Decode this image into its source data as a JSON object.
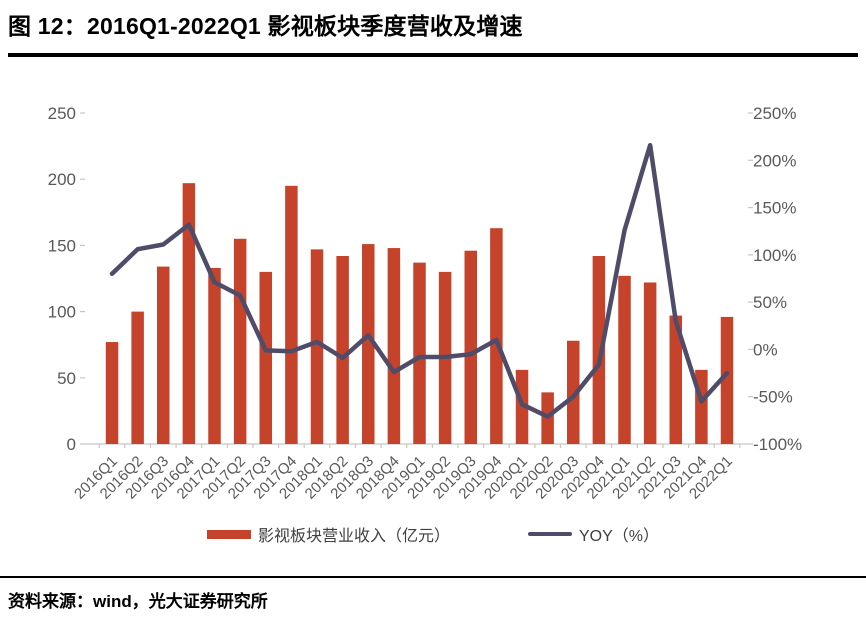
{
  "figure": {
    "title": "图 12：2016Q1-2022Q1 影视板块季度营收及增速",
    "source": "资料来源：wind，光大证券研究所"
  },
  "legend": {
    "revenue_label": "影视板块营业收入（亿元）",
    "yoy_label": "YOY（%）"
  },
  "colors": {
    "bar": "#C5432B",
    "line": "#4F4C69",
    "axis_text": "#595959",
    "tick": "#C6C6C6",
    "rule": "#000000"
  },
  "chart_data": {
    "type": "bar+line",
    "title": "图 12：2016Q1-2022Q1 影视板块季度营收及增速",
    "categories": [
      "2016Q1",
      "2016Q2",
      "2016Q3",
      "2016Q4",
      "2017Q1",
      "2017Q2",
      "2017Q3",
      "2017Q4",
      "2018Q1",
      "2018Q2",
      "2018Q3",
      "2018Q4",
      "2019Q1",
      "2019Q2",
      "2019Q3",
      "2019Q4",
      "2020Q1",
      "2020Q2",
      "2020Q3",
      "2020Q4",
      "2021Q1",
      "2021Q2",
      "2021Q3",
      "2021Q4",
      "2022Q1"
    ],
    "series": [
      {
        "name": "影视板块营业收入（亿元）",
        "kind": "bar",
        "axis": "left",
        "values": [
          77,
          100,
          134,
          197,
          133,
          155,
          130,
          195,
          147,
          142,
          151,
          148,
          137,
          130,
          146,
          163,
          56,
          39,
          78,
          142,
          127,
          122,
          97,
          56,
          96
        ]
      },
      {
        "name": "YOY（%）",
        "kind": "line",
        "axis": "right",
        "values": [
          80,
          106,
          111,
          132,
          71,
          57,
          -1,
          -2,
          8,
          -9,
          15,
          -24,
          -8,
          -8,
          -5,
          10,
          -58,
          -71,
          -50,
          -16,
          126,
          216,
          30,
          -55,
          -25
        ]
      }
    ],
    "left_axis": {
      "min": 0,
      "max": 250,
      "step": 50,
      "tick_labels": [
        "0",
        "50",
        "100",
        "150",
        "200",
        "250"
      ],
      "tick_values": [
        0,
        50,
        100,
        150,
        200,
        250
      ]
    },
    "right_axis": {
      "min": -100,
      "max": 250,
      "step": 50,
      "tick_labels": [
        "-100%",
        "-50%",
        "0%",
        "50%",
        "100%",
        "150%",
        "200%",
        "250%"
      ],
      "tick_values": [
        -100,
        -50,
        0,
        50,
        100,
        150,
        200,
        250
      ]
    },
    "grid": false,
    "legend_position": "bottom"
  }
}
